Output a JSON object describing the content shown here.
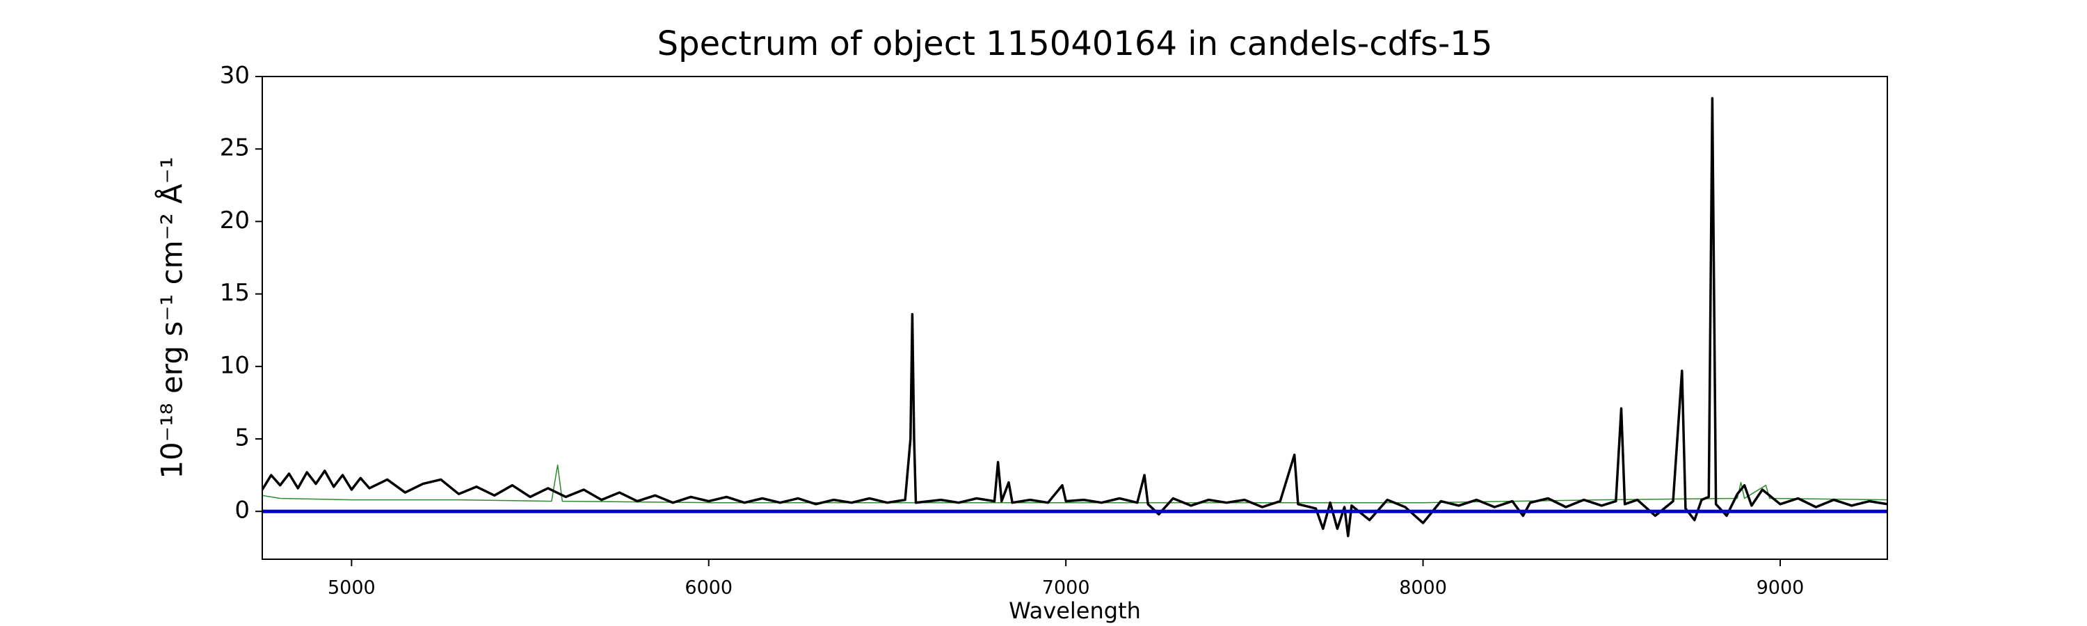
{
  "chart_data": {
    "type": "line",
    "title": "Spectrum of object 115040164 in candels-cdfs-15",
    "x_label": "Wavelength",
    "y_label": "10⁻¹⁸ erg s⁻¹ cm⁻² Å⁻¹",
    "xlim": [
      4750,
      9300
    ],
    "ylim": [
      -3.3,
      30
    ],
    "xticks": [
      5000,
      6000,
      7000,
      8000,
      9000
    ],
    "yticks": [
      0,
      5,
      10,
      15,
      20,
      25,
      30
    ],
    "series": [
      {
        "color": "#2e8b2e",
        "width": 1.5,
        "x": [
          4750,
          4800,
          5000,
          5300,
          5560,
          5577,
          5590,
          6000,
          6500,
          7000,
          7500,
          8000,
          8500,
          8880,
          8890,
          8900,
          8960,
          8970,
          9300
        ],
        "values": [
          1.1,
          0.9,
          0.8,
          0.8,
          0.7,
          3.2,
          0.7,
          0.6,
          0.6,
          0.6,
          0.6,
          0.6,
          0.8,
          0.9,
          2.0,
          0.9,
          1.8,
          0.9,
          0.8
        ]
      },
      {
        "color": "#000000",
        "width": 3.5,
        "x": [
          4750,
          4775,
          4800,
          4825,
          4850,
          4875,
          4900,
          4925,
          4950,
          4975,
          5000,
          5025,
          5050,
          5100,
          5150,
          5200,
          5250,
          5300,
          5350,
          5400,
          5450,
          5500,
          5550,
          5600,
          5650,
          5700,
          5750,
          5800,
          5850,
          5900,
          5950,
          6000,
          6050,
          6100,
          6150,
          6200,
          6250,
          6300,
          6350,
          6400,
          6450,
          6500,
          6550,
          6565,
          6570,
          6575,
          6580,
          6650,
          6700,
          6750,
          6800,
          6810,
          6820,
          6840,
          6850,
          6900,
          6950,
          6990,
          7000,
          7050,
          7100,
          7150,
          7200,
          7220,
          7230,
          7260,
          7300,
          7350,
          7400,
          7450,
          7500,
          7550,
          7600,
          7640,
          7650,
          7700,
          7720,
          7740,
          7760,
          7780,
          7790,
          7800,
          7850,
          7900,
          7950,
          8000,
          8050,
          8100,
          8150,
          8200,
          8250,
          8280,
          8300,
          8350,
          8400,
          8450,
          8500,
          8540,
          8555,
          8565,
          8600,
          8650,
          8700,
          8725,
          8735,
          8760,
          8780,
          8800,
          8810,
          8820,
          8850,
          8880,
          8900,
          8920,
          8950,
          9000,
          9050,
          9100,
          9150,
          9200,
          9250,
          9300
        ],
        "values": [
          1.5,
          2.5,
          1.8,
          2.6,
          1.6,
          2.7,
          1.9,
          2.8,
          1.7,
          2.5,
          1.5,
          2.3,
          1.6,
          2.2,
          1.3,
          1.9,
          2.2,
          1.2,
          1.7,
          1.1,
          1.8,
          1.0,
          1.6,
          1.0,
          1.5,
          0.8,
          1.3,
          0.7,
          1.1,
          0.6,
          1.0,
          0.7,
          1.0,
          0.6,
          0.9,
          0.6,
          0.9,
          0.5,
          0.8,
          0.6,
          0.9,
          0.6,
          0.8,
          5,
          13.6,
          5,
          0.6,
          0.8,
          0.6,
          0.9,
          0.7,
          3.4,
          0.7,
          2.0,
          0.6,
          0.8,
          0.6,
          1.8,
          0.7,
          0.8,
          0.6,
          0.9,
          0.6,
          2.5,
          0.5,
          -0.2,
          0.9,
          0.4,
          0.8,
          0.6,
          0.8,
          0.3,
          0.7,
          3.9,
          0.5,
          0.2,
          -1.2,
          0.6,
          -1.2,
          0.3,
          -1.7,
          0.4,
          -0.6,
          0.8,
          0.3,
          -0.8,
          0.7,
          0.4,
          0.8,
          0.3,
          0.7,
          -0.3,
          0.6,
          0.9,
          0.3,
          0.8,
          0.4,
          0.7,
          7.1,
          0.5,
          0.8,
          -0.3,
          0.7,
          9.7,
          0.2,
          -0.6,
          0.8,
          1.0,
          28.5,
          0.5,
          -0.3,
          1.2,
          1.8,
          0.4,
          1.5,
          0.5,
          0.9,
          0.3,
          0.8,
          0.4,
          0.7,
          0.5
        ]
      },
      {
        "color": "#0000cc",
        "width": 5,
        "x": [
          4750,
          9300
        ],
        "values": [
          0,
          0
        ]
      }
    ]
  }
}
